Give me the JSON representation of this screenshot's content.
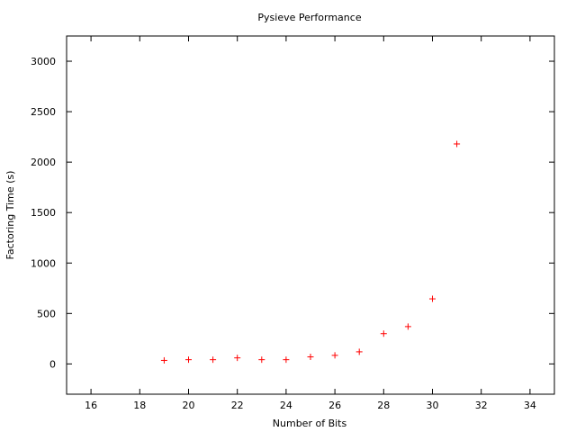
{
  "chart_data": {
    "type": "scatter",
    "title": "Pysieve Performance",
    "xlabel": "Number of Bits",
    "ylabel": "Factoring Time (s)",
    "xlim": [
      15,
      35
    ],
    "ylim": [
      -300,
      3250
    ],
    "xticks": [
      16,
      18,
      20,
      22,
      24,
      26,
      28,
      30,
      32,
      34
    ],
    "yticks": [
      0,
      500,
      1000,
      1500,
      2000,
      2500,
      3000
    ],
    "marker": "plus",
    "marker_color": "#ff0000",
    "grid": false,
    "series": [
      {
        "x": [
          19,
          20,
          21,
          22,
          23,
          24,
          25,
          26,
          27,
          28,
          29,
          30,
          31
        ],
        "y": [
          35,
          42,
          42,
          60,
          42,
          42,
          70,
          85,
          120,
          300,
          370,
          645,
          2180
        ]
      }
    ]
  }
}
